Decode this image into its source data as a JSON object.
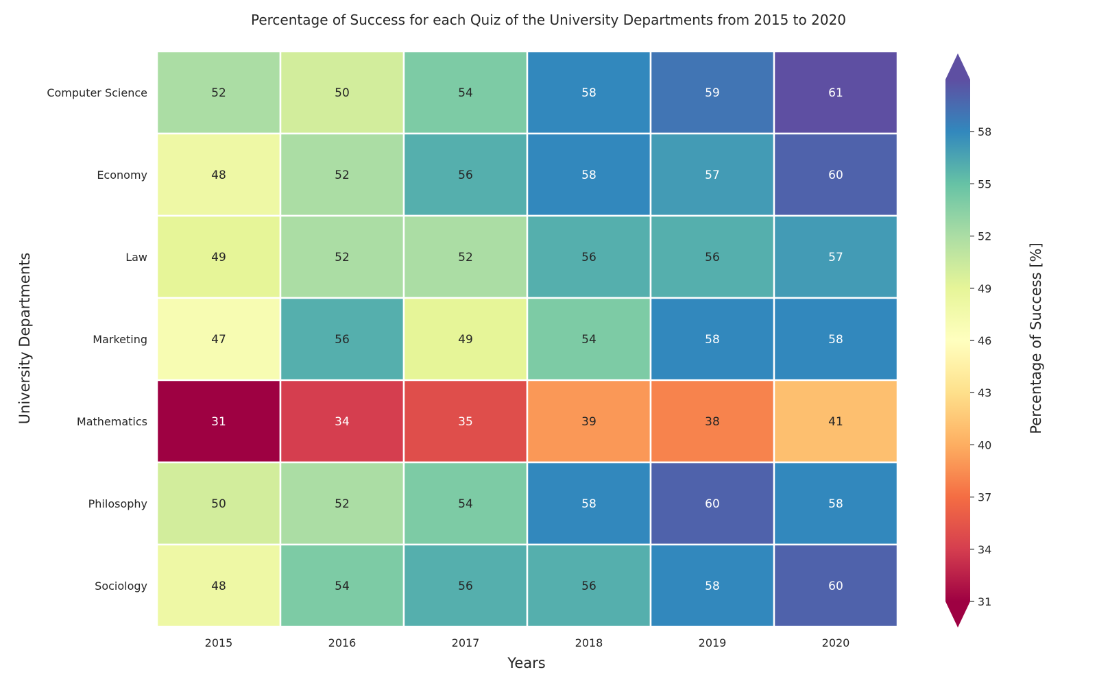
{
  "chart_data": {
    "type": "heatmap",
    "title": "Percentage of Success for each Quiz of the University Departments from 2015 to 2020",
    "xlabel": "Years",
    "ylabel": "University Departments",
    "x_categories": [
      "2015",
      "2016",
      "2017",
      "2018",
      "2019",
      "2020"
    ],
    "y_categories": [
      "Computer Science",
      "Economy",
      "Law",
      "Marketing",
      "Mathematics",
      "Philosophy",
      "Sociology"
    ],
    "values": [
      [
        52,
        50,
        54,
        58,
        59,
        61
      ],
      [
        48,
        52,
        56,
        58,
        57,
        60
      ],
      [
        49,
        52,
        52,
        56,
        56,
        57
      ],
      [
        47,
        56,
        49,
        54,
        58,
        58
      ],
      [
        31,
        34,
        35,
        39,
        38,
        41
      ],
      [
        50,
        52,
        54,
        58,
        60,
        58
      ],
      [
        48,
        54,
        56,
        56,
        58,
        60
      ]
    ],
    "annotations": true,
    "colormap": "Spectral",
    "vmin": 31,
    "vmax": 61,
    "colorbar": {
      "label": "Percentage of Success [%]",
      "ticks": [
        31,
        34,
        37,
        40,
        43,
        46,
        49,
        52,
        55,
        58
      ],
      "extend": "both"
    },
    "cell_border_color": "#ffffff"
  }
}
